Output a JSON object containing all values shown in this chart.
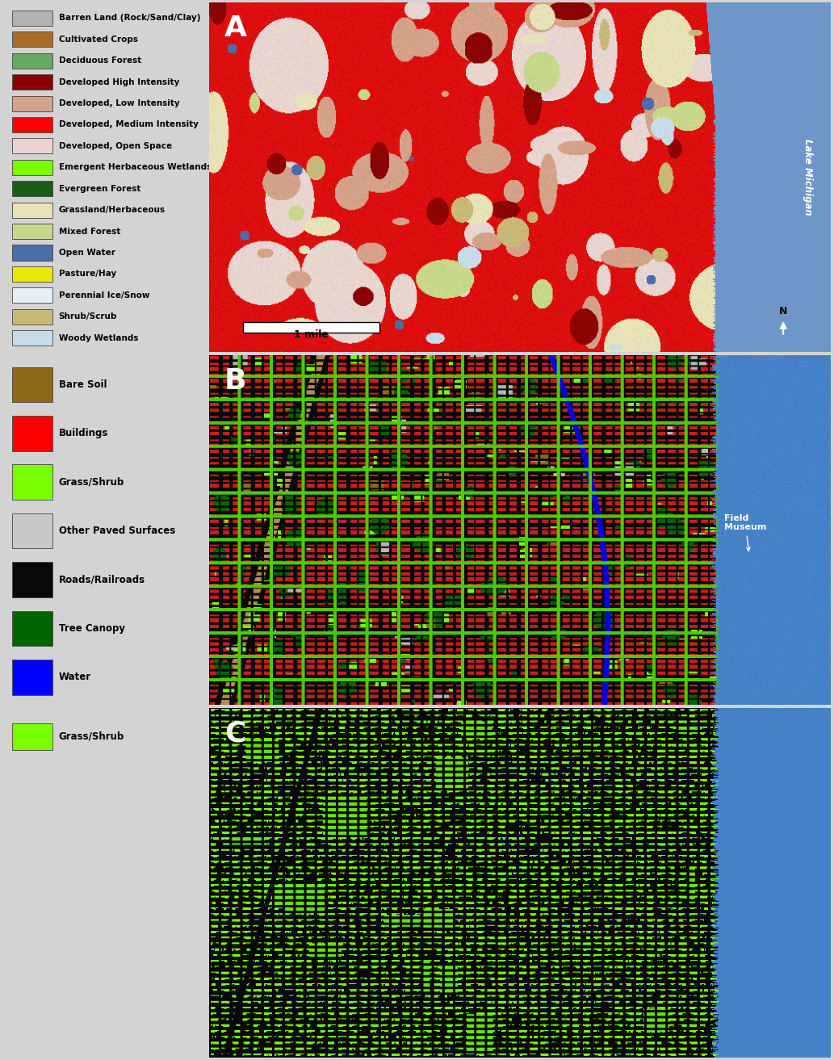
{
  "bg_color": "#d3d3d3",
  "legend_A": {
    "items": [
      {
        "label": "Barren Land (Rock/Sand/Clay)",
        "color": "#b2b2b2"
      },
      {
        "label": "Cultivated Crops",
        "color": "#ab6b28"
      },
      {
        "label": "Deciduous Forest",
        "color": "#68aa63"
      },
      {
        "label": "Developed High Intensity",
        "color": "#8b0000"
      },
      {
        "label": "Developed, Low Intensity",
        "color": "#d4a28a"
      },
      {
        "label": "Developed, Medium Intensity",
        "color": "#ff0000"
      },
      {
        "label": "Developed, Open Space",
        "color": "#e8d5d0"
      },
      {
        "label": "Emergent Herbaceous Wetlands",
        "color": "#7aff00"
      },
      {
        "label": "Evergreen Forest",
        "color": "#1a5c1a"
      },
      {
        "label": "Grassland/Herbaceous",
        "color": "#e8e2b8"
      },
      {
        "label": "Mixed Forest",
        "color": "#c8d88a"
      },
      {
        "label": "Open Water",
        "color": "#4a6ea8"
      },
      {
        "label": "Pasture/Hay",
        "color": "#e8e800"
      },
      {
        "label": "Perennial Ice/Snow",
        "color": "#e8eef8"
      },
      {
        "label": "Shrub/Scrub",
        "color": "#c8b878"
      },
      {
        "label": "Woody Wetlands",
        "color": "#c8dce8"
      }
    ]
  },
  "legend_B": {
    "items": [
      {
        "label": "Bare Soil",
        "color": "#8b6914"
      },
      {
        "label": "Buildings",
        "color": "#ff0000"
      },
      {
        "label": "Grass/Shrub",
        "color": "#7aff00"
      },
      {
        "label": "Other Paved Surfaces",
        "color": "#c8c8c8"
      },
      {
        "label": "Roads/Railroads",
        "color": "#080808"
      },
      {
        "label": "Tree Canopy",
        "color": "#006400"
      },
      {
        "label": "Water",
        "color": "#0000ff"
      }
    ]
  },
  "legend_C": {
    "items": [
      {
        "label": "Grass/Shrub",
        "color": "#7aff00"
      }
    ]
  },
  "label_A": "A",
  "label_B": "B",
  "label_C": "C",
  "scale_bar_text": "1 mile",
  "lake_michigan_text": "Lake Michigan",
  "field_museum_text": "Field\nMuseum",
  "compass_label": "N",
  "lake_color_A": [
    110,
    150,
    200
  ],
  "lake_color_B": [
    70,
    130,
    200
  ],
  "lake_color_C": [
    70,
    130,
    200
  ]
}
